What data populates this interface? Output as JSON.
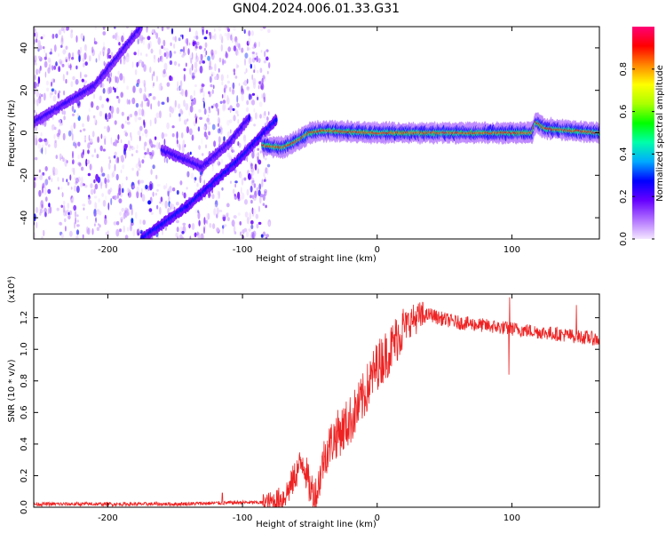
{
  "figure_title": "GN04.2024.006.01.33.G31",
  "colors": {
    "snr_line": "#ee2222",
    "frame": "#000000",
    "colorbar_stops": [
      "#f4e6ff",
      "#b070ff",
      "#6600ff",
      "#0000ff",
      "#00aaff",
      "#00ffaa",
      "#00ff00",
      "#aaff00",
      "#ffff00",
      "#ff8800",
      "#ff0000",
      "#ff0077"
    ]
  },
  "chart_data": [
    {
      "type": "heatmap",
      "name": "spectrogram",
      "title": "GN04.2024.006.01.33.G31",
      "xlabel": "Height of straight line (km)",
      "ylabel": "Frequency (Hz)",
      "xlim": [
        -255,
        165
      ],
      "ylim": [
        -50,
        50
      ],
      "xticks": [
        -200,
        -100,
        0,
        100
      ],
      "yticks": [
        -40,
        -20,
        0,
        20,
        40
      ],
      "colorbar": {
        "label": "Normalized spectral amplitude",
        "range": [
          0.0,
          1.0
        ],
        "ticks": [
          0.0,
          0.2,
          0.4,
          0.6,
          0.8
        ]
      },
      "features": [
        {
          "name": "noise region",
          "x_range": [
            -255,
            -80
          ],
          "y_range": [
            -50,
            50
          ],
          "amplitude": 0.15
        },
        {
          "name": "upper diagonal trace",
          "points": [
            [
              -255,
              5
            ],
            [
              -210,
              22
            ],
            [
              -175,
              50
            ]
          ],
          "amplitude": 0.25
        },
        {
          "name": "lower diagonal trace",
          "points": [
            [
              -175,
              -50
            ],
            [
              -140,
              -34
            ],
            [
              -105,
              -14
            ],
            [
              -75,
              6
            ]
          ],
          "amplitude": 0.3
        },
        {
          "name": "central curved trace",
          "points": [
            [
              -160,
              -8
            ],
            [
              -130,
              -16
            ],
            [
              -110,
              -5
            ],
            [
              -95,
              7
            ]
          ],
          "amplitude": 0.25
        },
        {
          "name": "signal tone",
          "points": [
            [
              -85,
              -6
            ],
            [
              -70,
              -7
            ],
            [
              -60,
              -4
            ],
            [
              -50,
              0
            ],
            [
              -40,
              1
            ],
            [
              0,
              0
            ],
            [
              50,
              0
            ],
            [
              100,
              0
            ],
            [
              115,
              0
            ],
            [
              118,
              5
            ],
            [
              125,
              2
            ],
            [
              165,
              0
            ]
          ],
          "amplitude": 0.95
        }
      ]
    },
    {
      "type": "line",
      "name": "snr",
      "xlabel": "Height of straight line (km)",
      "ylabel": "SNR (10 * v/v)",
      "y_multiplier_label": "(x10⁴)",
      "xlim": [
        -255,
        165
      ],
      "ylim": [
        0.0,
        1.35
      ],
      "xticks": [
        -200,
        -100,
        0,
        100
      ],
      "yticks": [
        0.0,
        0.2,
        0.4,
        0.6,
        0.8,
        1.0,
        1.2
      ],
      "series": [
        {
          "x": [
            -255,
            -200,
            -150,
            -100,
            -85,
            -80,
            -75,
            -70,
            -65,
            -60,
            -55,
            -50,
            -45,
            -40,
            -35,
            -30,
            -25,
            -20,
            -15,
            -10,
            -5,
            0,
            5,
            10,
            15,
            20,
            25,
            30,
            35,
            40,
            45,
            50,
            60,
            70,
            80,
            90,
            100,
            110,
            120,
            130,
            140,
            150,
            160,
            165
          ],
          "y": [
            0.02,
            0.02,
            0.02,
            0.03,
            0.03,
            0.03,
            0.04,
            0.06,
            0.12,
            0.22,
            0.3,
            0.12,
            0.08,
            0.3,
            0.4,
            0.46,
            0.5,
            0.55,
            0.62,
            0.7,
            0.8,
            0.9,
            0.95,
            1.0,
            1.08,
            1.14,
            1.18,
            1.2,
            1.21,
            1.22,
            1.2,
            1.19,
            1.17,
            1.16,
            1.15,
            1.14,
            1.13,
            1.12,
            1.11,
            1.1,
            1.09,
            1.08,
            1.07,
            1.06
          ]
        }
      ]
    }
  ]
}
